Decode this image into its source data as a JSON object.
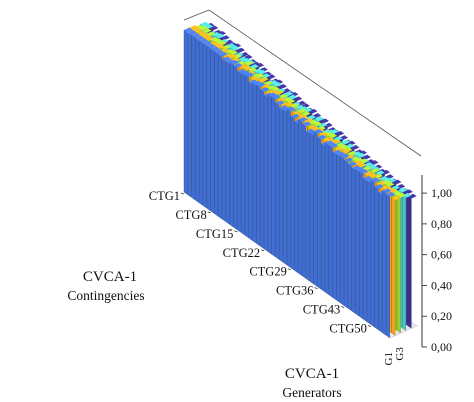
{
  "chart_data": {
    "type": "bar3d",
    "y_ticks": [
      "0,00",
      "0,20",
      "0,40",
      "0,60",
      "0,80",
      "1,00"
    ],
    "ylim": [
      0,
      1
    ],
    "contingency_axis": {
      "title": "CVCA-1",
      "subtitle": "Contingencies",
      "tick_labels": [
        "CTG1",
        "CTG8",
        "CTG15",
        "CTG22",
        "CTG29",
        "CTG36",
        "CTG43",
        "CTG50"
      ]
    },
    "generator_axis": {
      "title": "CVCA-1",
      "subtitle": "Generators",
      "tick_labels": [
        "G1",
        "G3"
      ]
    },
    "generator_colors": [
      "#3f6fd6",
      "#f2a21b",
      "#9acd32",
      "#49c6c2",
      "#3a2f8f"
    ],
    "contingency_count": 54,
    "back_generator_values": [
      0.97,
      0.97,
      0.96,
      0.97,
      0.96,
      0.95,
      0.95,
      0.96,
      0.95,
      0.94,
      0.94,
      0.93,
      0.93,
      0.94,
      0.93,
      0.92,
      0.92,
      0.91,
      0.92,
      0.91,
      0.9,
      0.9,
      0.91,
      0.9,
      0.89,
      0.89,
      0.88,
      0.89,
      0.88,
      0.87,
      0.88,
      0.87,
      0.86,
      0.86,
      0.87,
      0.86,
      0.85,
      0.86,
      0.85,
      0.84,
      0.85,
      0.84,
      0.83,
      0.84,
      0.83,
      0.82,
      0.83,
      0.82,
      0.81,
      0.82,
      0.81,
      0.8,
      0.81,
      0.8
    ]
  }
}
